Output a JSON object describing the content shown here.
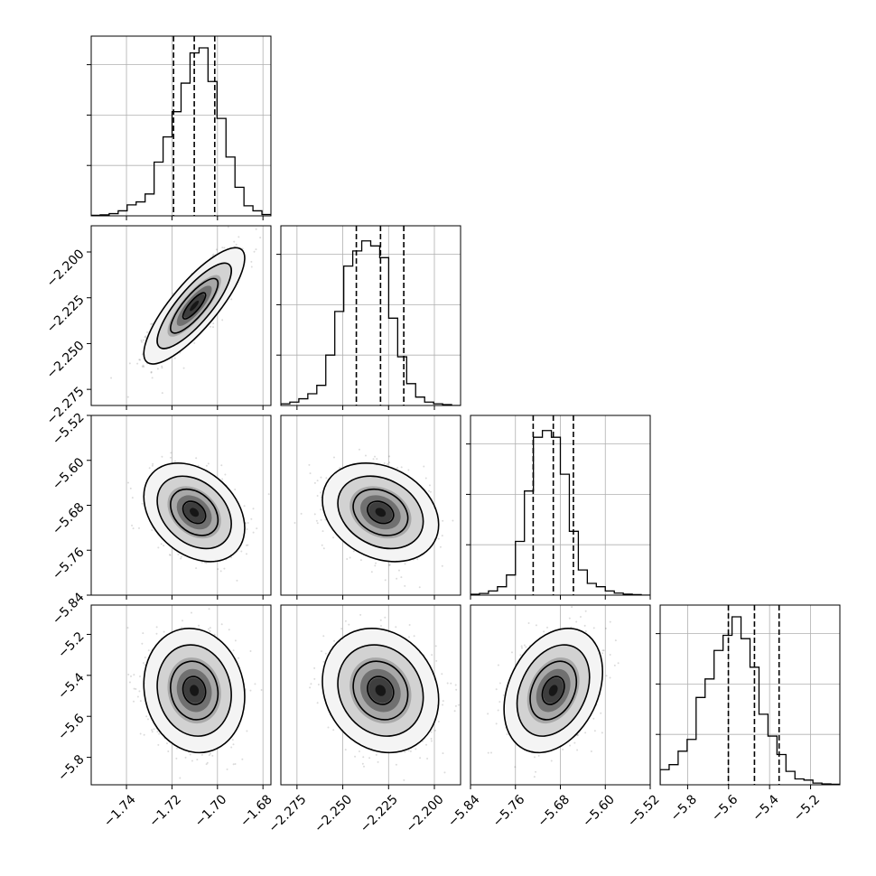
{
  "chart_data": {
    "type": "corner",
    "grid": true,
    "color": "#000000",
    "parameters": [
      {
        "ticks": [
          -1.74,
          -1.72,
          -1.7,
          -1.68
        ],
        "tick_labels": [
          "−1.74",
          "−1.72",
          "−1.70",
          "−1.68"
        ],
        "range": [
          -1.7555,
          -1.6765
        ],
        "quantiles": [
          -1.7193,
          -1.7102,
          -1.7012
        ]
      },
      {
        "ticks": [
          -2.275,
          -2.25,
          -2.225,
          -2.2
        ],
        "tick_labels": [
          "−2.275",
          "−2.250",
          "−2.225",
          "−2.200"
        ],
        "range": [
          -2.2838,
          -2.1857
        ],
        "quantiles": [
          -2.2426,
          -2.2294,
          -2.2167
        ]
      },
      {
        "ticks": [
          -5.84,
          -5.76,
          -5.68,
          -5.6,
          -5.52
        ],
        "tick_labels": [
          "−5.84",
          "−5.76",
          "−5.68",
          "−5.60",
          "−5.52"
        ],
        "range": [
          -5.84,
          -5.52
        ],
        "quantiles": [
          -5.7284,
          -5.6926,
          -5.6568
        ]
      },
      {
        "ticks": [
          -5.8,
          -5.6,
          -5.4,
          -5.2
        ],
        "tick_labels": [
          "−5.8",
          "−5.6",
          "−5.4",
          "−5.2"
        ],
        "range": [
          -5.934,
          -5.057
        ],
        "quantiles": [
          -5.6011,
          -5.4738,
          -5.3536
        ]
      }
    ],
    "histograms": [
      [
        0.003,
        0.006,
        0.013,
        0.03,
        0.065,
        0.083,
        0.13,
        0.32,
        0.47,
        0.62,
        0.79,
        0.97,
        1.0,
        0.8,
        0.58,
        0.35,
        0.17,
        0.06,
        0.03,
        0.008
      ],
      [
        0.01,
        0.02,
        0.04,
        0.07,
        0.12,
        0.3,
        0.56,
        0.83,
        0.92,
        0.98,
        0.95,
        0.88,
        0.52,
        0.29,
        0.13,
        0.05,
        0.02,
        0.01,
        0.005,
        0.0
      ],
      [
        0.005,
        0.01,
        0.025,
        0.05,
        0.12,
        0.32,
        0.62,
        0.94,
        0.98,
        0.94,
        0.72,
        0.38,
        0.15,
        0.07,
        0.05,
        0.025,
        0.012,
        0.006,
        0.003,
        0.0
      ],
      [
        0.09,
        0.12,
        0.2,
        0.27,
        0.52,
        0.63,
        0.8,
        0.89,
        1.0,
        0.87,
        0.7,
        0.42,
        0.29,
        0.18,
        0.08,
        0.035,
        0.028,
        0.01,
        0.005,
        0.003
      ]
    ],
    "correlations": [
      [
        0,
        1,
        0.82
      ],
      [
        0,
        2,
        -0.32
      ],
      [
        1,
        2,
        -0.25
      ],
      [
        0,
        3,
        -0.1
      ],
      [
        1,
        3,
        -0.15
      ],
      [
        2,
        3,
        0.3
      ]
    ]
  }
}
